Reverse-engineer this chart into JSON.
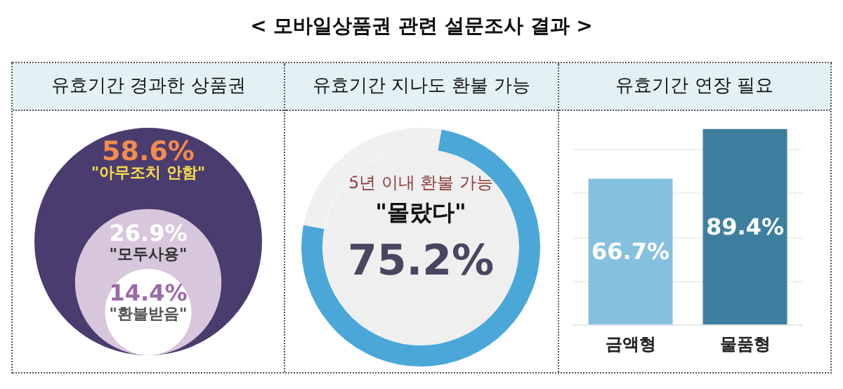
{
  "chart_data": [
    {
      "type": "other",
      "title": "유효기간 경과한 상품권",
      "annotations": [
        "< 모바일상품권 관련 설문조사 결과 >"
      ],
      "categories": [
        "\"아무조치 안함\"",
        "\"모두사용\"",
        "\"환불받음\""
      ],
      "values": [
        58.6,
        26.9,
        14.4
      ],
      "value_labels": [
        "58.6%",
        "26.9%",
        "14.4%"
      ],
      "colors": [
        "#4b3c6f",
        "#d8c7dc",
        "#ffffff"
      ]
    },
    {
      "type": "donut",
      "title": "유효기간 지나도 환불 가능",
      "subtitle": "5년 이내 환불 가능",
      "categories": [
        "\"몰랐다\"",
        null
      ],
      "values": [
        75.2,
        24.8
      ],
      "value_labels": [
        "75.2%",
        null
      ],
      "colors": [
        "#4aa7d8",
        "#f0f0f0"
      ]
    },
    {
      "type": "bar",
      "title": "유효기간 연장 필요",
      "categories": [
        "금액형",
        "물품형"
      ],
      "values": [
        66.7,
        89.4
      ],
      "value_labels": [
        "66.7%",
        "89.4%"
      ],
      "colors": [
        "#86c0df",
        "#3e7f9f"
      ],
      "ylim": [
        0,
        90
      ],
      "yticks": [
        {
          "value": 0,
          "label": null
        },
        {
          "value": 20,
          "label": null
        },
        {
          "value": 40,
          "label": null
        },
        {
          "value": 60,
          "label": null
        },
        {
          "value": 80,
          "label": null
        }
      ],
      "grid": "y",
      "tick_labels": "x"
    }
  ]
}
